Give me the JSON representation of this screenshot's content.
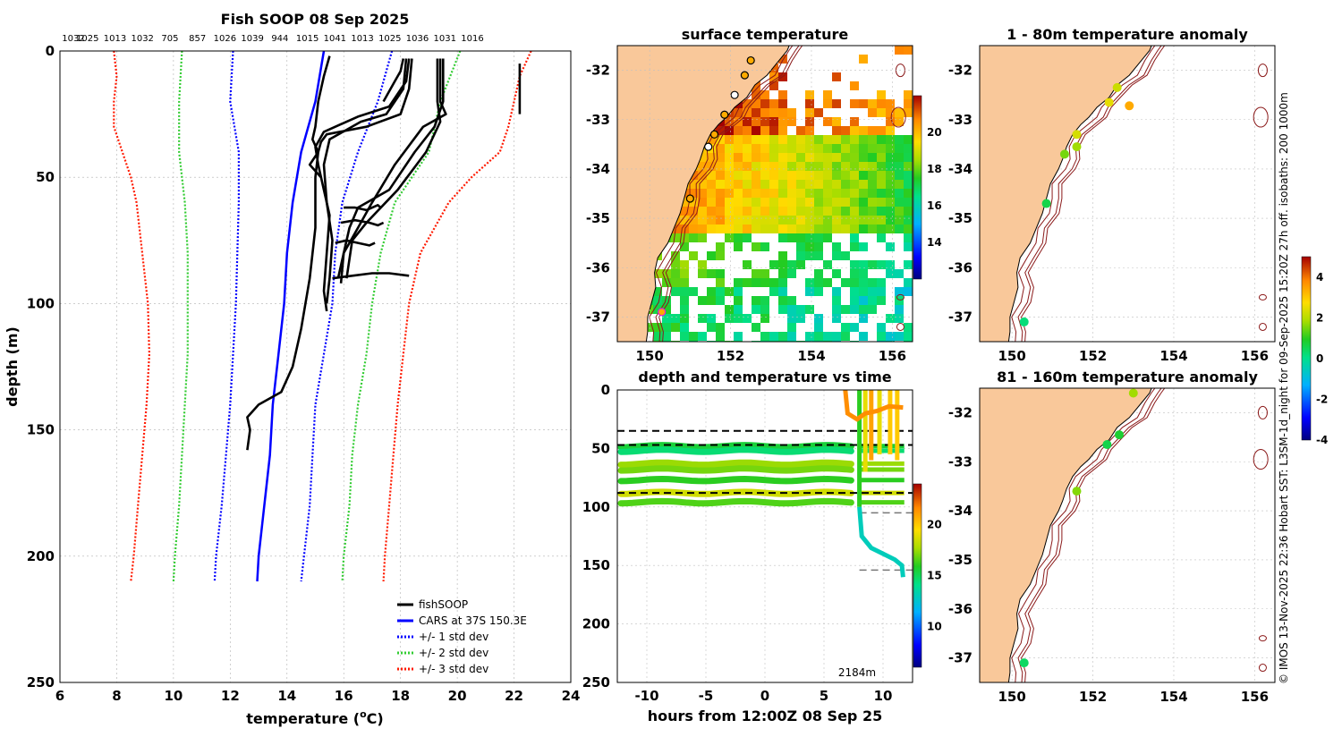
{
  "colors": {
    "land": "#f9c89a",
    "cars": "#0000ff",
    "sd1": "#0000ff",
    "sd2": "#33cc33",
    "sd3": "#ff1a00",
    "fish": "#000000",
    "grid": "#b0b0b0",
    "isobath": "#8b1a1a"
  },
  "chart_data": [
    {
      "id": "profile",
      "type": "line",
      "title": "Fish SOOP 08 Sep 2025",
      "top_labels": [
        "1032",
        "1025",
        "1013",
        "1032",
        "705",
        "857",
        "1026",
        "1039",
        "944",
        "1015",
        "1041",
        "1013",
        "1025",
        "1036",
        "1031",
        "1016"
      ],
      "xlabel": "temperature (",
      "xlabel_sup": "o",
      "xlabel_tail": "C)",
      "ylabel": "depth (m)",
      "xlim": [
        6,
        24
      ],
      "ylim": [
        0,
        250
      ],
      "xticks": [
        "6",
        "8",
        "10",
        "12",
        "14",
        "16",
        "18",
        "20",
        "22",
        "24"
      ],
      "yticks": [
        "0",
        "50",
        "100",
        "150",
        "200",
        "250"
      ],
      "legend": [
        "fishSOOP",
        "CARS at 37S 150.3E",
        "+/- 1 std dev",
        "+/- 2 std dev",
        "+/- 3 std dev"
      ],
      "cars": {
        "depth": [
          0,
          20,
          40,
          60,
          80,
          100,
          120,
          140,
          160,
          180,
          200,
          210
        ],
        "temp": [
          15.3,
          15.0,
          14.5,
          14.2,
          14.0,
          13.9,
          13.7,
          13.5,
          13.4,
          13.2,
          13.0,
          12.95
        ]
      },
      "sd1_lo": {
        "depth": [
          0,
          20,
          40,
          60,
          80,
          100,
          120,
          140,
          160,
          180,
          200,
          210
        ],
        "temp": [
          12.1,
          12.0,
          12.3,
          12.3,
          12.25,
          12.2,
          12.1,
          12.0,
          11.85,
          11.7,
          11.5,
          11.45
        ]
      },
      "sd1_hi": {
        "depth": [
          0,
          20,
          40,
          60,
          80,
          100,
          120,
          140,
          160,
          180,
          200,
          210
        ],
        "temp": [
          17.7,
          17.2,
          16.5,
          15.95,
          15.7,
          15.6,
          15.3,
          15.0,
          14.9,
          14.8,
          14.6,
          14.5
        ]
      },
      "sd2_lo": {
        "depth": [
          0,
          20,
          40,
          60,
          80,
          100,
          120,
          140,
          160,
          180,
          200,
          210
        ],
        "temp": [
          10.3,
          10.2,
          10.2,
          10.4,
          10.5,
          10.5,
          10.5,
          10.4,
          10.3,
          10.2,
          10.05,
          10.0
        ]
      },
      "sd2_hi": {
        "depth": [
          0,
          20,
          40,
          60,
          80,
          100,
          120,
          140,
          160,
          180,
          200,
          210
        ],
        "temp": [
          20.1,
          19.4,
          19.0,
          17.8,
          17.3,
          17.0,
          16.8,
          16.5,
          16.3,
          16.2,
          16.0,
          15.95
        ]
      },
      "sd3_lo": {
        "depth": [
          0,
          10,
          20,
          30,
          40,
          50,
          60,
          80,
          100,
          120,
          140,
          160,
          180,
          200,
          210
        ],
        "temp": [
          7.9,
          8.0,
          7.9,
          7.9,
          8.2,
          8.5,
          8.7,
          8.9,
          9.1,
          9.15,
          9.05,
          8.9,
          8.75,
          8.6,
          8.5
        ]
      },
      "sd3_hi": {
        "depth": [
          0,
          10,
          20,
          30,
          40,
          50,
          60,
          80,
          100,
          120,
          140,
          160,
          180,
          200,
          210
        ],
        "temp": [
          22.6,
          22.2,
          22.0,
          21.8,
          21.5,
          20.5,
          19.7,
          18.7,
          18.3,
          18.1,
          17.9,
          17.75,
          17.6,
          17.45,
          17.4
        ]
      },
      "fish": [
        {
          "depth": [
            2,
            10,
            20,
            30,
            35,
            40,
            45,
            50
          ],
          "temp": [
            15.5,
            15.3,
            15.1,
            15.0,
            14.9,
            15.1,
            14.8,
            15.2
          ]
        },
        {
          "depth": [
            3,
            15,
            25,
            30,
            33,
            36,
            40,
            50,
            70,
            90,
            110,
            125,
            135,
            140,
            145,
            150,
            158
          ],
          "temp": [
            18.4,
            18.3,
            18.0,
            16.8,
            15.4,
            15.2,
            15.1,
            15.0,
            15.0,
            14.8,
            14.5,
            14.2,
            13.8,
            13.0,
            12.6,
            12.7,
            12.6
          ]
        },
        {
          "depth": [
            3,
            12,
            22,
            26,
            32,
            38,
            45,
            55,
            65,
            80,
            95,
            103
          ],
          "temp": [
            18.3,
            18.2,
            17.6,
            16.5,
            15.3,
            15.0,
            15.1,
            15.3,
            15.5,
            15.4,
            15.3,
            15.4
          ]
        },
        {
          "depth": [
            3,
            15,
            25,
            28,
            35,
            45,
            60,
            75,
            90,
            100
          ],
          "temp": [
            18.2,
            18.1,
            17.5,
            16.6,
            15.5,
            15.3,
            15.4,
            15.6,
            15.5,
            15.4
          ]
        },
        {
          "depth": [
            3,
            8,
            12,
            20
          ],
          "temp": [
            18.1,
            18.0,
            17.8,
            17.4
          ]
        },
        {
          "depth": [
            3,
            20,
            25,
            30,
            45,
            60,
            70,
            80,
            90
          ],
          "temp": [
            19.4,
            19.4,
            19.6,
            18.8,
            17.8,
            17.0,
            16.5,
            16.0,
            15.8
          ]
        },
        {
          "depth": [
            3,
            20,
            30,
            40,
            55,
            62,
            70,
            80,
            92
          ],
          "temp": [
            19.5,
            19.5,
            19.2,
            18.5,
            17.6,
            16.5,
            16.2,
            16.0,
            15.9
          ]
        },
        {
          "depth": [
            3,
            20,
            28,
            40,
            55,
            68,
            75,
            90
          ],
          "temp": [
            19.3,
            19.3,
            19.4,
            18.9,
            17.9,
            16.8,
            16.3,
            16.1
          ]
        },
        {
          "depth": [
            62,
            62,
            63,
            61,
            62
          ],
          "temp": [
            16.0,
            16.4,
            16.8,
            17.2,
            17.3
          ]
        },
        {
          "depth": [
            68,
            67,
            68,
            69,
            68
          ],
          "temp": [
            15.9,
            16.4,
            16.9,
            17.2,
            17.4
          ]
        },
        {
          "depth": [
            76,
            75,
            76,
            77,
            76
          ],
          "temp": [
            15.7,
            16.1,
            16.5,
            16.9,
            17.1
          ]
        },
        {
          "depth": [
            90,
            89,
            88,
            88,
            89
          ],
          "temp": [
            15.6,
            16.3,
            17.0,
            17.6,
            18.3
          ]
        },
        {
          "depth": [
            5,
            25
          ],
          "temp": [
            22.2,
            22.2
          ]
        }
      ]
    },
    {
      "id": "sst",
      "type": "heatmap",
      "title": "surface temperature",
      "xlim": [
        149.2,
        156.5
      ],
      "ylim": [
        -37.5,
        -31.5
      ],
      "xticks": [
        "150",
        "152",
        "154",
        "156"
      ],
      "yticks": [
        "-32",
        "-33",
        "-34",
        "-35",
        "-36",
        "-37"
      ],
      "colorbar": {
        "min": 12,
        "max": 22,
        "ticks": [
          "14",
          "16",
          "18",
          "20"
        ]
      }
    },
    {
      "id": "timeseries",
      "type": "line",
      "title": "depth and temperature vs time",
      "xlabel": "hours from 12:00Z 08 Sep 25",
      "xlim": [
        -12.5,
        12.5
      ],
      "ylim": [
        0,
        250
      ],
      "xticks": [
        "-10",
        "-5",
        "0",
        "5",
        "10"
      ],
      "yticks": [
        "0",
        "50",
        "100",
        "150",
        "200",
        "250"
      ],
      "annotation": "2184m",
      "dashed_depths": [
        35,
        47,
        88,
        105,
        154
      ],
      "levels": [
        {
          "depth": 48,
          "temp": 15.5
        },
        {
          "depth": 52,
          "temp": 14.5
        },
        {
          "depth": 63,
          "temp": 17.5
        },
        {
          "depth": 68,
          "temp": 17.0
        },
        {
          "depth": 77,
          "temp": 16.0
        },
        {
          "depth": 88,
          "temp": 18.5
        },
        {
          "depth": 96,
          "temp": 16.5
        }
      ],
      "colorbar": {
        "min": 6,
        "max": 24,
        "ticks": [
          "10",
          "15",
          "20"
        ]
      }
    },
    {
      "id": "anom1",
      "type": "scatter",
      "title": "1 - 80m temperature anomaly",
      "xlim": [
        149.2,
        156.5
      ],
      "ylim": [
        -37.5,
        -31.5
      ],
      "xticks": [
        "150",
        "152",
        "154",
        "156"
      ],
      "yticks": [
        "-32",
        "-33",
        "-34",
        "-35",
        "-36",
        "-37"
      ],
      "points": [
        {
          "lon": 152.6,
          "lat": -32.35,
          "anom": 2.2
        },
        {
          "lon": 152.4,
          "lat": -32.65,
          "anom": 2.5
        },
        {
          "lon": 152.9,
          "lat": -32.72,
          "anom": 3.4
        },
        {
          "lon": 151.6,
          "lat": -33.3,
          "anom": 2.3
        },
        {
          "lon": 151.6,
          "lat": -33.55,
          "anom": 1.8
        },
        {
          "lon": 151.3,
          "lat": -33.7,
          "anom": 1.5
        },
        {
          "lon": 150.85,
          "lat": -34.7,
          "anom": 0.6
        },
        {
          "lon": 150.3,
          "lat": -37.1,
          "anom": 0.2
        }
      ]
    },
    {
      "id": "anom2",
      "type": "scatter",
      "title": "81 - 160m temperature anomaly",
      "xlim": [
        149.2,
        156.5
      ],
      "ylim": [
        -37.5,
        -31.5
      ],
      "xticks": [
        "150",
        "152",
        "154",
        "156"
      ],
      "yticks": [
        "-32",
        "-33",
        "-34",
        "-35",
        "-36",
        "-37"
      ],
      "points": [
        {
          "lon": 153.0,
          "lat": -31.6,
          "anom": 1.8
        },
        {
          "lon": 152.65,
          "lat": -32.45,
          "anom": 0.8
        },
        {
          "lon": 152.35,
          "lat": -32.65,
          "anom": 0.6
        },
        {
          "lon": 151.6,
          "lat": -33.6,
          "anom": 1.6
        },
        {
          "lon": 150.3,
          "lat": -37.1,
          "anom": 0.4
        }
      ],
      "colorbar": {
        "min": -4,
        "max": 5,
        "ticks": [
          "4",
          "2",
          "0",
          "-2",
          "-4"
        ]
      }
    }
  ],
  "side_note": "© IMOS 13-Nov-2025 22:36 Hobart SST: L3SM-1d_night for 09-Sep-2025 15:20Z 27h off. isobaths: 200  1000m"
}
